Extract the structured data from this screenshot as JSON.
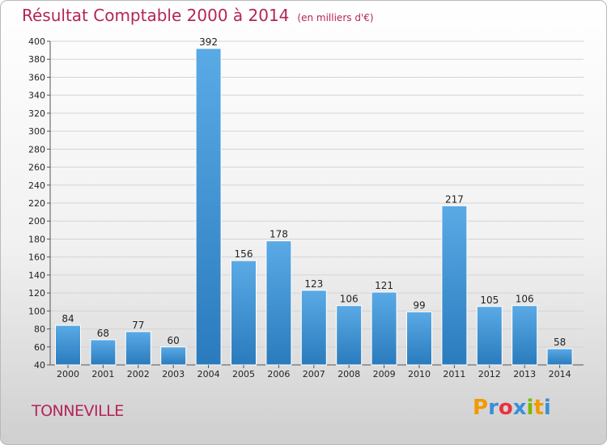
{
  "header": {
    "title": "Résultat Comptable 2000 à 2014",
    "unit": "(en milliers d'€)"
  },
  "place": "TONNEVILLE",
  "logo": {
    "letters": [
      "P",
      "r",
      "o",
      "x",
      "i",
      "t",
      "i"
    ],
    "colors": [
      "#f29900",
      "#3a8fd8",
      "#e8343c",
      "#3a8fd8",
      "#7ab800",
      "#f29900",
      "#3a8fd8"
    ]
  },
  "colors": {
    "bar_light": "#5aaae6",
    "bar_dark": "#2a7bbd",
    "title": "#b4245a"
  },
  "chart_data": {
    "type": "bar",
    "title": "Résultat Comptable 2000 à 2014",
    "ylabel": "(en milliers d'€)",
    "categories": [
      "2000",
      "2001",
      "2002",
      "2003",
      "2004",
      "2005",
      "2006",
      "2007",
      "2008",
      "2009",
      "2010",
      "2011",
      "2012",
      "2013",
      "2014"
    ],
    "values": [
      84,
      68,
      77,
      60,
      392,
      156,
      178,
      123,
      106,
      121,
      99,
      217,
      105,
      106,
      58
    ],
    "ylim": [
      40,
      400
    ],
    "yticks": [
      40,
      60,
      80,
      100,
      120,
      140,
      160,
      180,
      200,
      220,
      240,
      260,
      280,
      300,
      320,
      340,
      360,
      380,
      400
    ],
    "grid": true
  }
}
